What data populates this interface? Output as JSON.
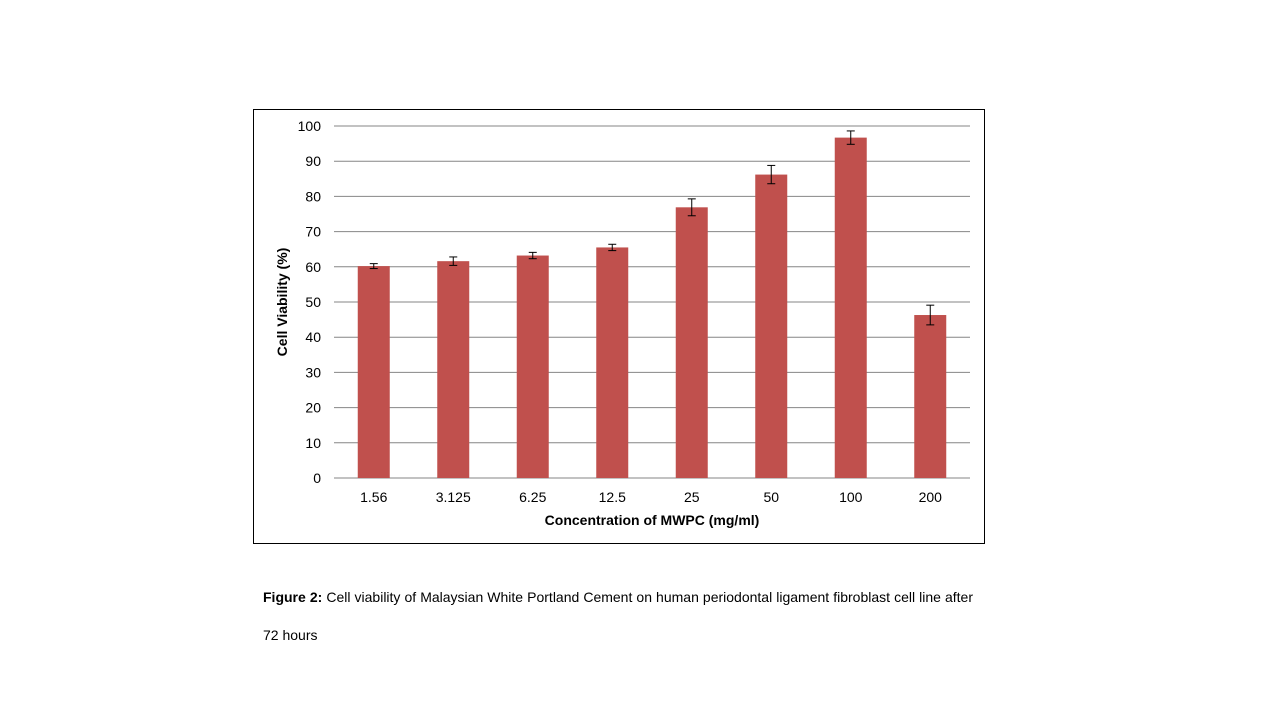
{
  "chart_data": {
    "type": "bar",
    "categories": [
      "1.56",
      "3.125",
      "6.25",
      "12.5",
      "25",
      "50",
      "100",
      "200"
    ],
    "series": [
      {
        "values": [
          60.2,
          61.6,
          63.2,
          65.5,
          76.9,
          86.2,
          96.7,
          46.3
        ],
        "errors": [
          0.7,
          1.2,
          0.9,
          0.9,
          2.4,
          2.6,
          1.9,
          2.8
        ],
        "color": "#c0504d"
      }
    ],
    "ylim": [
      0,
      100
    ],
    "yticks": [
      "0",
      "10",
      "20",
      "30",
      "40",
      "50",
      "60",
      "70",
      "80",
      "90",
      "100"
    ],
    "xlabel": "Concentration of MWPC (mg/ml)",
    "ylabel": "Cell Viability (%)",
    "grid": true,
    "legend": "none",
    "gridline_color": "#868686"
  },
  "caption": {
    "label": "Figure 2:",
    "text": " Cell viability of Malaysian White Portland Cement on human periodontal ligament fibroblast cell line after 72 hours"
  }
}
